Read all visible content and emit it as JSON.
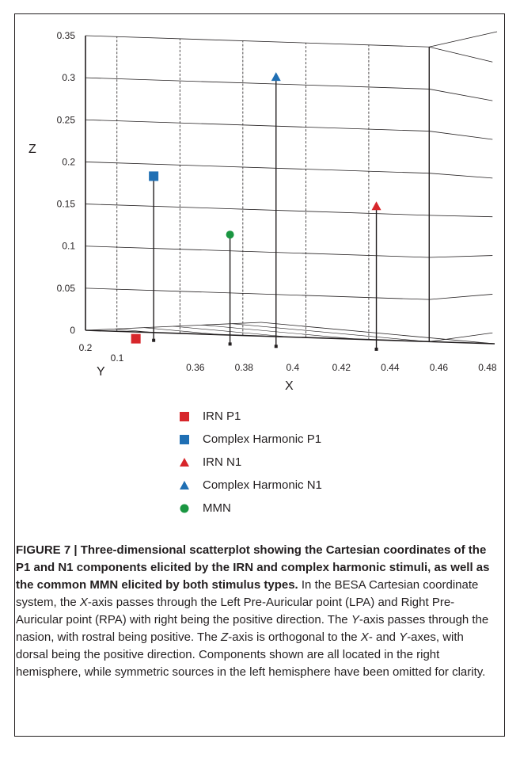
{
  "chart_data": {
    "type": "scatter3d",
    "x_axis": {
      "label": "X",
      "ticks": [
        "0.36",
        "0.38",
        "0.4",
        "0.42",
        "0.44",
        "0.46",
        "0.48"
      ],
      "range": [
        0.35,
        0.48
      ]
    },
    "y_axis": {
      "label": "Y",
      "ticks": [
        "0.1",
        "0.2"
      ],
      "range": [
        0.05,
        0.2
      ]
    },
    "z_axis": {
      "label": "Z",
      "ticks": [
        "0",
        "0.05",
        "0.1",
        "0.15",
        "0.2",
        "0.25",
        "0.3",
        "0.35"
      ],
      "range": [
        0,
        0.35
      ]
    },
    "grid": true,
    "series": [
      {
        "name": "IRN P1",
        "marker": "square",
        "color": "#d7262b",
        "points": [
          {
            "x": 0.36,
            "y": 0.1,
            "z": 0.0
          }
        ]
      },
      {
        "name": "Complex Harmonic P1",
        "marker": "square",
        "color": "#1f6fb4",
        "points": [
          {
            "x": 0.365,
            "y": 0.085,
            "z": 0.195
          }
        ]
      },
      {
        "name": "IRN N1",
        "marker": "triangle",
        "color": "#d7262b",
        "points": [
          {
            "x": 0.44,
            "y": 0.07,
            "z": 0.17
          }
        ]
      },
      {
        "name": "Complex Harmonic N1",
        "marker": "triangle",
        "color": "#1f6fb4",
        "points": [
          {
            "x": 0.405,
            "y": 0.06,
            "z": 0.32
          }
        ]
      },
      {
        "name": "MMN",
        "marker": "circle",
        "color": "#1a9641",
        "points": [
          {
            "x": 0.39,
            "y": 0.07,
            "z": 0.13
          }
        ]
      }
    ]
  },
  "legend": [
    {
      "label": "IRN P1",
      "marker": "square",
      "color": "#d7262b"
    },
    {
      "label": "Complex Harmonic P1",
      "marker": "square",
      "color": "#1f6fb4"
    },
    {
      "label": "IRN N1",
      "marker": "triangle",
      "color": "#d7262b"
    },
    {
      "label": "Complex Harmonic N1",
      "marker": "triangle",
      "color": "#1f6fb4"
    },
    {
      "label": "MMN",
      "marker": "circle",
      "color": "#1a9641"
    }
  ],
  "caption": {
    "title": "FIGURE 7 | Three-dimensional scatterplot showing the Cartesian coordinates of the P1 and N1 components elicited by the IRN and complex harmonic stimuli, as well as the common MMN elicited by both stimulus types.",
    "p1": " In the BESA Cartesian coordinate system, the ",
    "x1": "X",
    "p2": "-axis passes through the Left Pre-Auricular point (LPA) and Right Pre-Auricular point (RPA) with right being the positive direction. The ",
    "y1": "Y",
    "p3": "-axis passes through the nasion, with rostral being positive. The ",
    "z1": "Z",
    "p4": "-axis is orthogonal to the ",
    "x2": "X",
    "p5": "- and ",
    "y2": "Y",
    "p6": "-axes, with dorsal being the positive direction. Components shown are all located in the right hemisphere, while symmetric sources in the left hemisphere have been omitted for clarity."
  }
}
